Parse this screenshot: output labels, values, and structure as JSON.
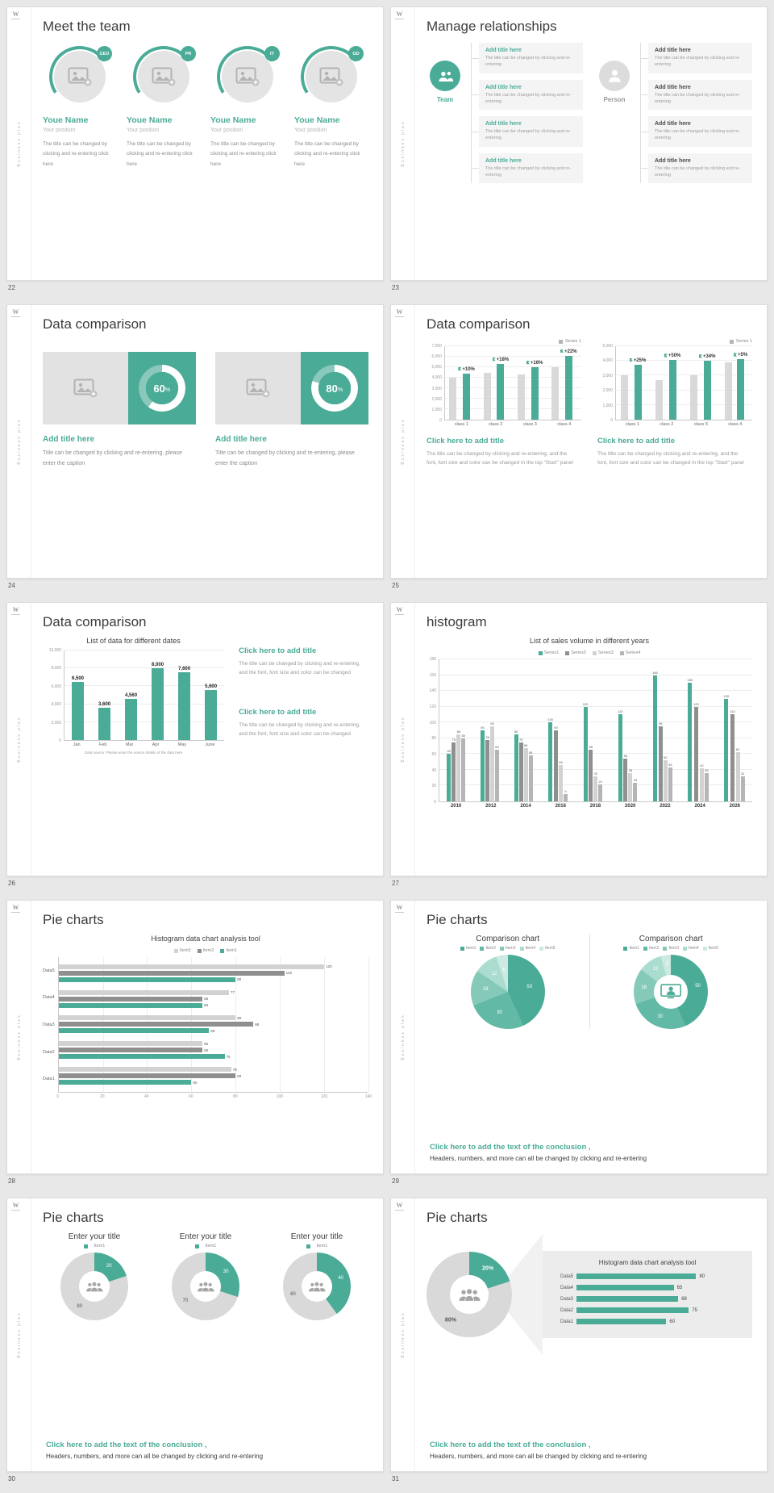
{
  "colors": {
    "teal": "#4aab97",
    "gray_light": "#d9d9d9",
    "gray_mid": "#b5b5b5",
    "gray_dark": "#8f8f8f"
  },
  "common": {
    "logo": "W",
    "sidebar_text": "Business plan",
    "percent_sign": "%"
  },
  "slides": {
    "s22": {
      "page": "22",
      "title": "Meet the team",
      "members": [
        {
          "badge": "CEO",
          "name": "Youe Name",
          "position": "Your position",
          "body": "The title can be changed by clicking and re-entering click here"
        },
        {
          "badge": "PR",
          "name": "Youe Name",
          "position": "Your position",
          "body": "The title can be changed by clicking and re-entering click here"
        },
        {
          "badge": "IT",
          "name": "Youe Name",
          "position": "Your position",
          "body": "The title can be changed by clicking and re-entering click here"
        },
        {
          "badge": "GD",
          "name": "Youe Name",
          "position": "Your position",
          "body": "The title can be changed by clicking and re-entering click here"
        }
      ]
    },
    "s23": {
      "page": "23",
      "title": "Manage relationships",
      "team_label": "Team",
      "person_label": "Person",
      "left_items": [
        {
          "title": "Add title here",
          "body": "The title can be changed by clicking and re-entering"
        },
        {
          "title": "Add title here",
          "body": "The title can be changed by clicking and re-entering"
        },
        {
          "title": "Add title here",
          "body": "The title can be changed by clicking and re-entering"
        },
        {
          "title": "Add title here",
          "body": "The title can be changed by clicking and re-entering"
        }
      ],
      "right_items": [
        {
          "title": "Add title here",
          "body": "The title can be changed by clicking and re-entering"
        },
        {
          "title": "Add title here",
          "body": "The title can be changed by clicking and re-entering"
        },
        {
          "title": "Add title here",
          "body": "The title can be changed by clicking and re-entering"
        },
        {
          "title": "Add title here",
          "body": "The title can be changed by clicking and re-entering"
        }
      ]
    },
    "s24": {
      "page": "24",
      "title": "Data comparison",
      "cards": [
        {
          "percent": 60,
          "percent_label": "60",
          "heading": "Add title here",
          "body": "Title can be changed by clicking and re-entering, please enter the caption"
        },
        {
          "percent": 80,
          "percent_label": "80",
          "heading": "Add title here",
          "body": "Title can be changed by clicking and re-entering, please enter the caption"
        }
      ]
    },
    "s25": {
      "page": "25",
      "title": "Data comparison",
      "charts": [
        {
          "type": "vbar",
          "legend": "Series 1",
          "legend_color": "#b5b5b5",
          "ymax": 7000,
          "ystep": 1000,
          "categories": [
            "class 1",
            "class 2",
            "class 3",
            "class 4"
          ],
          "series": [
            {
              "name": "base",
              "color": "#d9d9d9",
              "values": [
                4000,
                4500,
                4300,
                5000
              ]
            },
            {
              "name": "Series 1",
              "color": "#4aab97",
              "values": [
                4400,
                5300,
                5000,
                6100
              ]
            }
          ],
          "annotations": [
            "+10%",
            "+18%",
            "+16%",
            "+22%"
          ],
          "ann_series": 1
        },
        {
          "type": "vbar",
          "legend": "Series 1",
          "legend_color": "#b5b5b5",
          "ymax": 5000,
          "ystep": 1000,
          "categories": [
            "class 1",
            "class 2",
            "class 3",
            "class 4"
          ],
          "series": [
            {
              "name": "base",
              "color": "#d9d9d9",
              "values": [
                3000,
                2700,
                3000,
                3900
              ]
            },
            {
              "name": "Series 1",
              "color": "#4aab97",
              "values": [
                3750,
                4050,
                4000,
                4100
              ]
            }
          ],
          "annotations": [
            "+25%",
            "+50%",
            "+34%",
            "+5%"
          ],
          "ann_series": 1
        }
      ],
      "blocks": [
        {
          "heading": "Click here to add title",
          "body": "The title can be changed by clicking and re-entering, and the font, font size and color can be changed in the top \"Start\" panel"
        },
        {
          "heading": "Click here to add title",
          "body": "The title can be changed by clicking and re-entering, and the font, font size and color can be changed in the top \"Start\" panel"
        }
      ]
    },
    "s26": {
      "page": "26",
      "title": "Data comparison",
      "chart": {
        "type": "vbar",
        "title": "List of data for different dates",
        "ymax": 10000,
        "ystep": 2000,
        "categories": [
          "Jan",
          "Feb",
          "Mar",
          "Apr",
          "May",
          "June"
        ],
        "series": [
          {
            "name": "data",
            "color": "#4aab97",
            "values": [
              6500,
              3600,
              4560,
              8000,
              7600,
              5600
            ],
            "labels": [
              "6,500",
              "3,600",
              "4,560",
              "8,000",
              "7,600",
              "5,600"
            ]
          }
        ],
        "caption": "Data source: Please enter the source details of the data here"
      },
      "blocks": [
        {
          "heading": "Click here to add title",
          "body": "The title can be changed by clicking and re-entering, and the font, font size and color can be changed"
        },
        {
          "heading": "Click here to add title",
          "body": "The title can be changed by clicking and re-entering, and the font, font size and color can be changed"
        }
      ]
    },
    "s27": {
      "page": "27",
      "title": "histogram",
      "chart": {
        "type": "vbar",
        "title": "List of sales volume in different years",
        "ymax": 180,
        "ystep": 20,
        "show_values": true,
        "categories": [
          "2010",
          "2012",
          "2014",
          "2016",
          "2018",
          "2020",
          "2022",
          "2024",
          "2026"
        ],
        "series": [
          {
            "name": "Series1",
            "color": "#4aab97",
            "values": [
              60,
              90,
              85,
              100,
              120,
              110,
              160,
              150,
              130
            ]
          },
          {
            "name": "Series2",
            "color": "#8f8f8f",
            "values": [
              75,
              78,
              75,
              90,
              65,
              54,
              95,
              120,
              110
            ]
          },
          {
            "name": "Series3",
            "color": "#d2d2d2",
            "values": [
              85,
              95,
              68,
              46,
              32,
              36,
              52,
              42,
              62
            ]
          },
          {
            "name": "Series4",
            "color": "#b5b5b5",
            "values": [
              80,
              65,
              58,
              9,
              21,
              24,
              43,
              36,
              32
            ]
          }
        ]
      }
    },
    "s28": {
      "page": "28",
      "title": "Pie charts",
      "chart": {
        "type": "hbar",
        "title": "Histogram data chart analysis tool",
        "xmax": 140,
        "xstep": 20,
        "legend": [
          "Item3",
          "Item2",
          "Item1"
        ],
        "legend_colors": [
          "#d2d2d2",
          "#8f8f8f",
          "#4aab97"
        ],
        "series_colors": [
          "#d2d2d2",
          "#8f8f8f",
          "#4aab97"
        ],
        "categories": [
          "Data5",
          "Data4",
          "Data3",
          "Data2",
          "Data1"
        ],
        "rows": [
          [
            120,
            102,
            80
          ],
          [
            77,
            65,
            65
          ],
          [
            80,
            88,
            68
          ],
          [
            65,
            65,
            75
          ],
          [
            78,
            80,
            60
          ]
        ]
      }
    },
    "s29": {
      "page": "29",
      "title": "Pie charts",
      "charts": [
        {
          "type": "pie",
          "title": "Comparison chart",
          "legend": [
            "Item1",
            "Item2",
            "Item3",
            "Item4",
            "Item5"
          ],
          "values": [
            50,
            30,
            18,
            12,
            6
          ],
          "labels": [
            "50",
            "30",
            "18",
            "12",
            "6"
          ],
          "colors": [
            "#4aab97",
            "#62b9a6",
            "#85cab9",
            "#aadccf",
            "#cdeae2"
          ],
          "label_r": 30
        },
        {
          "type": "pie",
          "donut": true,
          "icon": "persondesk",
          "title": "Comparison chart",
          "legend": [
            "Item1",
            "Item2",
            "Item3",
            "Item4",
            "Item5"
          ],
          "values": [
            50,
            30,
            18,
            12,
            5
          ],
          "labels": [
            "50",
            "30",
            "18",
            "12",
            "5"
          ],
          "colors": [
            "#4aab97",
            "#62b9a6",
            "#85cab9",
            "#aadccf",
            "#cdeae2"
          ],
          "label_r": 37
        }
      ],
      "conclusion": {
        "heading": "Click here to add the text of the conclusion ,",
        "body": "Headers, numbers, and more can all be changed by clicking and re-entering"
      }
    },
    "s30": {
      "page": "30",
      "title": "Pie charts",
      "donuts": [
        {
          "title": "Enter your title",
          "legend": "Item1",
          "chart": {
            "type": "pie",
            "donut": true,
            "icon": "people",
            "values": [
              20,
              80
            ],
            "labels": [
              "20",
              "80"
            ],
            "colors": [
              "#4aab97",
              "#d9d9d9"
            ],
            "label_colors": [
              "#ffffff",
              "#555555"
            ],
            "label_r": 37
          }
        },
        {
          "title": "Enter your title",
          "legend": "Item1",
          "chart": {
            "type": "pie",
            "donut": true,
            "icon": "people",
            "values": [
              30,
              70
            ],
            "labels": [
              "30",
              "70"
            ],
            "colors": [
              "#4aab97",
              "#d9d9d9"
            ],
            "label_colors": [
              "#ffffff",
              "#555555"
            ],
            "label_r": 37
          }
        },
        {
          "title": "Enter your title",
          "legend": "Item1",
          "chart": {
            "type": "pie",
            "donut": true,
            "icon": "people",
            "values": [
              40,
              60
            ],
            "labels": [
              "40",
              "60"
            ],
            "colors": [
              "#4aab97",
              "#d9d9d9"
            ],
            "label_colors": [
              "#ffffff",
              "#555555"
            ],
            "label_r": 37
          }
        }
      ],
      "conclusion": {
        "heading": "Click here to add the text of the conclusion ,",
        "body": "Headers, numbers, and more can all be changed by clicking and re-entering"
      }
    },
    "s31": {
      "page": "31",
      "title": "Pie charts",
      "donut": {
        "type": "pie",
        "donut": true,
        "icon": "people",
        "values": [
          20,
          80
        ],
        "labels": [
          "20%",
          "80%"
        ],
        "colors": [
          "#4aab97",
          "#d9d9d9"
        ],
        "label_colors": [
          "#ffffff",
          "#555555"
        ],
        "label_r": 37
      },
      "panel": {
        "type": "bars",
        "title": "Histogram data chart analysis tool",
        "max": 100,
        "rows": [
          {
            "label": "Data5",
            "value": 80
          },
          {
            "label": "Data4",
            "value": 65
          },
          {
            "label": "Data3",
            "value": 68
          },
          {
            "label": "Data2",
            "value": 75
          },
          {
            "label": "Data1",
            "value": 60
          }
        ]
      },
      "conclusion": {
        "heading": "Click here to add the text of the conclusion ,",
        "body": "Headers, numbers, and more can all be changed by clicking and re-entering"
      }
    }
  }
}
